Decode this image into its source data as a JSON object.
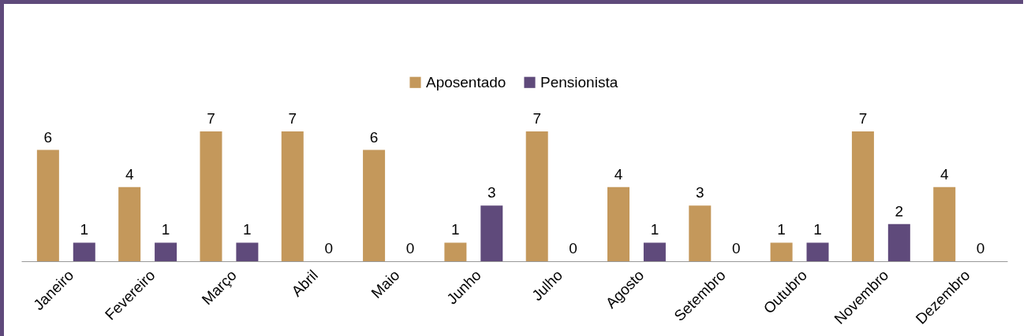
{
  "chart_data": {
    "type": "bar",
    "categories": [
      "Janeiro",
      "Fevereiro",
      "Março",
      "Abril",
      "Maio",
      "Junho",
      "Julho",
      "Agosto",
      "Setembro",
      "Outubro",
      "Novembro",
      "Dezembro"
    ],
    "series": [
      {
        "name": "Aposentado",
        "color": "#c4985b",
        "values": [
          6,
          4,
          7,
          7,
          6,
          1,
          7,
          4,
          3,
          1,
          7,
          4
        ]
      },
      {
        "name": "Pensionista",
        "color": "#5f4a7b",
        "values": [
          1,
          1,
          1,
          0,
          0,
          3,
          0,
          1,
          0,
          1,
          2,
          0
        ]
      }
    ],
    "data_labels": true,
    "legend": "top"
  }
}
